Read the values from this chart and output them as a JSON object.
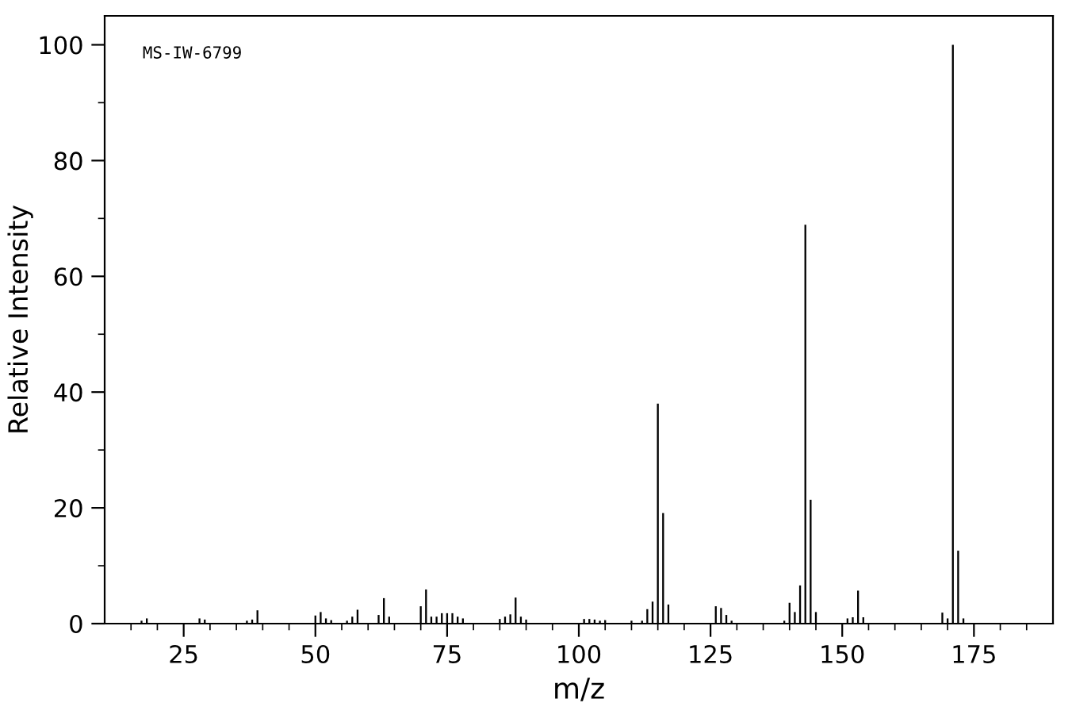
{
  "chart_data": {
    "type": "bar",
    "xlabel": "m/z",
    "ylabel": "Relative Intensity",
    "annotations": [
      "MS-IW-6799"
    ],
    "x": [
      17,
      18,
      28,
      29,
      37,
      38,
      39,
      50,
      51,
      52,
      53,
      56,
      57,
      58,
      62,
      63,
      64,
      70,
      71,
      72,
      73,
      74,
      75,
      76,
      77,
      78,
      85,
      86,
      87,
      88,
      89,
      90,
      101,
      102,
      103,
      104,
      105,
      110,
      112,
      113,
      114,
      115,
      116,
      117,
      126,
      127,
      128,
      129,
      139,
      140,
      141,
      142,
      143,
      144,
      145,
      151,
      152,
      153,
      154,
      169,
      170,
      171,
      172,
      173
    ],
    "values": [
      0.5,
      0.9,
      0.9,
      0.7,
      0.5,
      0.7,
      2.3,
      1.4,
      2,
      0.9,
      0.6,
      0.5,
      1.2,
      2.4,
      1.5,
      4.4,
      1.2,
      3,
      5.9,
      1.2,
      1.2,
      1.8,
      1.8,
      1.8,
      1.2,
      0.9,
      0.8,
      1.2,
      1.6,
      4.5,
      1.2,
      0.7,
      0.8,
      0.8,
      0.7,
      0.5,
      0.6,
      0.5,
      0.5,
      2.5,
      3.8,
      38,
      19.1,
      3.3,
      3,
      2.7,
      1.5,
      0.5,
      0.5,
      3.6,
      2,
      6.6,
      68.9,
      21.4,
      2,
      0.9,
      1.1,
      5.7,
      1.1,
      1.9,
      0.9,
      100,
      12.6,
      0.9
    ],
    "color": "#000000",
    "xlim": [
      10,
      190
    ],
    "xticks": [
      25,
      50,
      75,
      100,
      125,
      150,
      175,
      {
        "value": 15,
        "label": null
      },
      {
        "value": 20,
        "label": null
      },
      {
        "value": 30,
        "label": null
      },
      {
        "value": 35,
        "label": null
      },
      {
        "value": 40,
        "label": null
      },
      {
        "value": 45,
        "label": null
      },
      {
        "value": 55,
        "label": null
      },
      {
        "value": 60,
        "label": null
      },
      {
        "value": 65,
        "label": null
      },
      {
        "value": 70,
        "label": null
      },
      {
        "value": 80,
        "label": null
      },
      {
        "value": 85,
        "label": null
      },
      {
        "value": 90,
        "label": null
      },
      {
        "value": 95,
        "label": null
      },
      {
        "value": 105,
        "label": null
      },
      {
        "value": 110,
        "label": null
      },
      {
        "value": 115,
        "label": null
      },
      {
        "value": 120,
        "label": null
      },
      {
        "value": 130,
        "label": null
      },
      {
        "value": 135,
        "label": null
      },
      {
        "value": 140,
        "label": null
      },
      {
        "value": 145,
        "label": null
      },
      {
        "value": 155,
        "label": null
      },
      {
        "value": 160,
        "label": null
      },
      {
        "value": 165,
        "label": null
      },
      {
        "value": 170,
        "label": null
      },
      {
        "value": 180,
        "label": null
      },
      {
        "value": 185,
        "label": null
      }
    ],
    "ylim": [
      0,
      105
    ],
    "yticks": [
      0,
      20,
      40,
      60,
      80,
      100,
      {
        "value": 10,
        "label": null
      },
      {
        "value": 30,
        "label": null
      },
      {
        "value": 50,
        "label": null
      },
      {
        "value": 70,
        "label": null
      },
      {
        "value": 90,
        "label": null
      }
    ],
    "grid": false,
    "legend": false
  }
}
